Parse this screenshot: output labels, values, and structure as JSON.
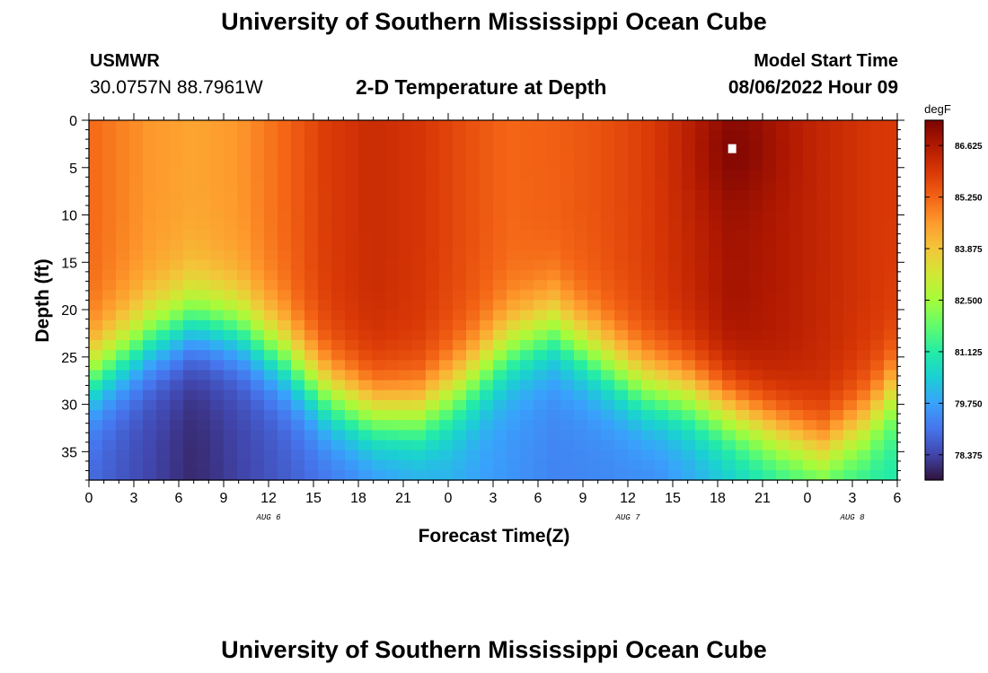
{
  "header": {
    "title": "University of Southern Mississippi Ocean Cube",
    "station_name": "USMWR",
    "station_coords": "30.0757N  88.7961W",
    "plot_title": "2-D Temperature at Depth",
    "model_label": "Model Start Time",
    "model_time": "08/06/2022 Hour 09"
  },
  "footer": {
    "title": "University of Southern Mississippi Ocean Cube"
  },
  "chart_data": {
    "type": "heatmap",
    "title": "2-D Temperature at Depth",
    "xlabel": "Forecast Time(Z)",
    "ylabel": "Depth (ft)",
    "units": "degF",
    "xlim": [
      0,
      54
    ],
    "ylim": [
      0,
      38
    ],
    "x_ticks": [
      0,
      3,
      6,
      9,
      12,
      15,
      18,
      21,
      24,
      27,
      30,
      33,
      36,
      39,
      42,
      45,
      48,
      51,
      54
    ],
    "x_tick_labels": [
      "0",
      "3",
      "6",
      "9",
      "12",
      "15",
      "18",
      "21",
      "0",
      "3",
      "6",
      "9",
      "12",
      "15",
      "18",
      "21",
      "0",
      "3",
      "6"
    ],
    "y_ticks": [
      0,
      5,
      10,
      15,
      20,
      25,
      30,
      35
    ],
    "y_tick_labels": [
      "0",
      "5",
      "10",
      "15",
      "20",
      "25",
      "30",
      "35"
    ],
    "date_labels": [
      {
        "x": 12,
        "text": "AUG 6"
      },
      {
        "x": 36,
        "text": "AUG 7"
      },
      {
        "x": 51,
        "text": "AUG 8"
      }
    ],
    "colorbar": {
      "range": [
        77.7,
        87.3
      ],
      "labels": [
        "86.625",
        "85.250",
        "83.875",
        "82.500",
        "81.125",
        "79.750",
        "78.375"
      ],
      "colors": [
        "#30123b",
        "#4145ab",
        "#4675ed",
        "#39a2fc",
        "#1bcfd4",
        "#24eca6",
        "#61fc6c",
        "#a4fc3b",
        "#d1e834",
        "#f3c63a",
        "#fe9b2d",
        "#f36315",
        "#d93806",
        "#b11901",
        "#7a0402"
      ]
    },
    "thermocline": {
      "forecast_hour": [
        0,
        4,
        7,
        10,
        13,
        16,
        19,
        22,
        25,
        28,
        31,
        34,
        37,
        40,
        43,
        46,
        49,
        52,
        54
      ],
      "depth_ft": [
        27,
        23,
        21,
        22,
        25,
        29,
        31,
        31,
        28,
        24,
        22,
        25,
        28,
        29,
        31,
        33,
        35,
        32,
        28
      ]
    },
    "surface_layer": {
      "forecast_hour": [
        0,
        4,
        7,
        10,
        13,
        16,
        19,
        22,
        25,
        28,
        31,
        34,
        37,
        40,
        43,
        46,
        49,
        52,
        54
      ],
      "temperature_degF": [
        85.2,
        84.6,
        84.4,
        84.6,
        85.2,
        85.9,
        86.2,
        86.0,
        85.6,
        85.2,
        85.3,
        85.5,
        85.8,
        86.3,
        86.8,
        86.6,
        86.3,
        86.0,
        85.9
      ]
    },
    "bottom_temperature_degF": {
      "forecast_hour": [
        0,
        7,
        14,
        24,
        31,
        38,
        46,
        54
      ],
      "temperature_degF": [
        78.9,
        78.0,
        78.8,
        79.9,
        79.3,
        79.4,
        80.7,
        81.0
      ]
    },
    "maximum": {
      "forecast_hour": 43,
      "depth_ft": 3,
      "temperature_degF": 87.2
    }
  }
}
